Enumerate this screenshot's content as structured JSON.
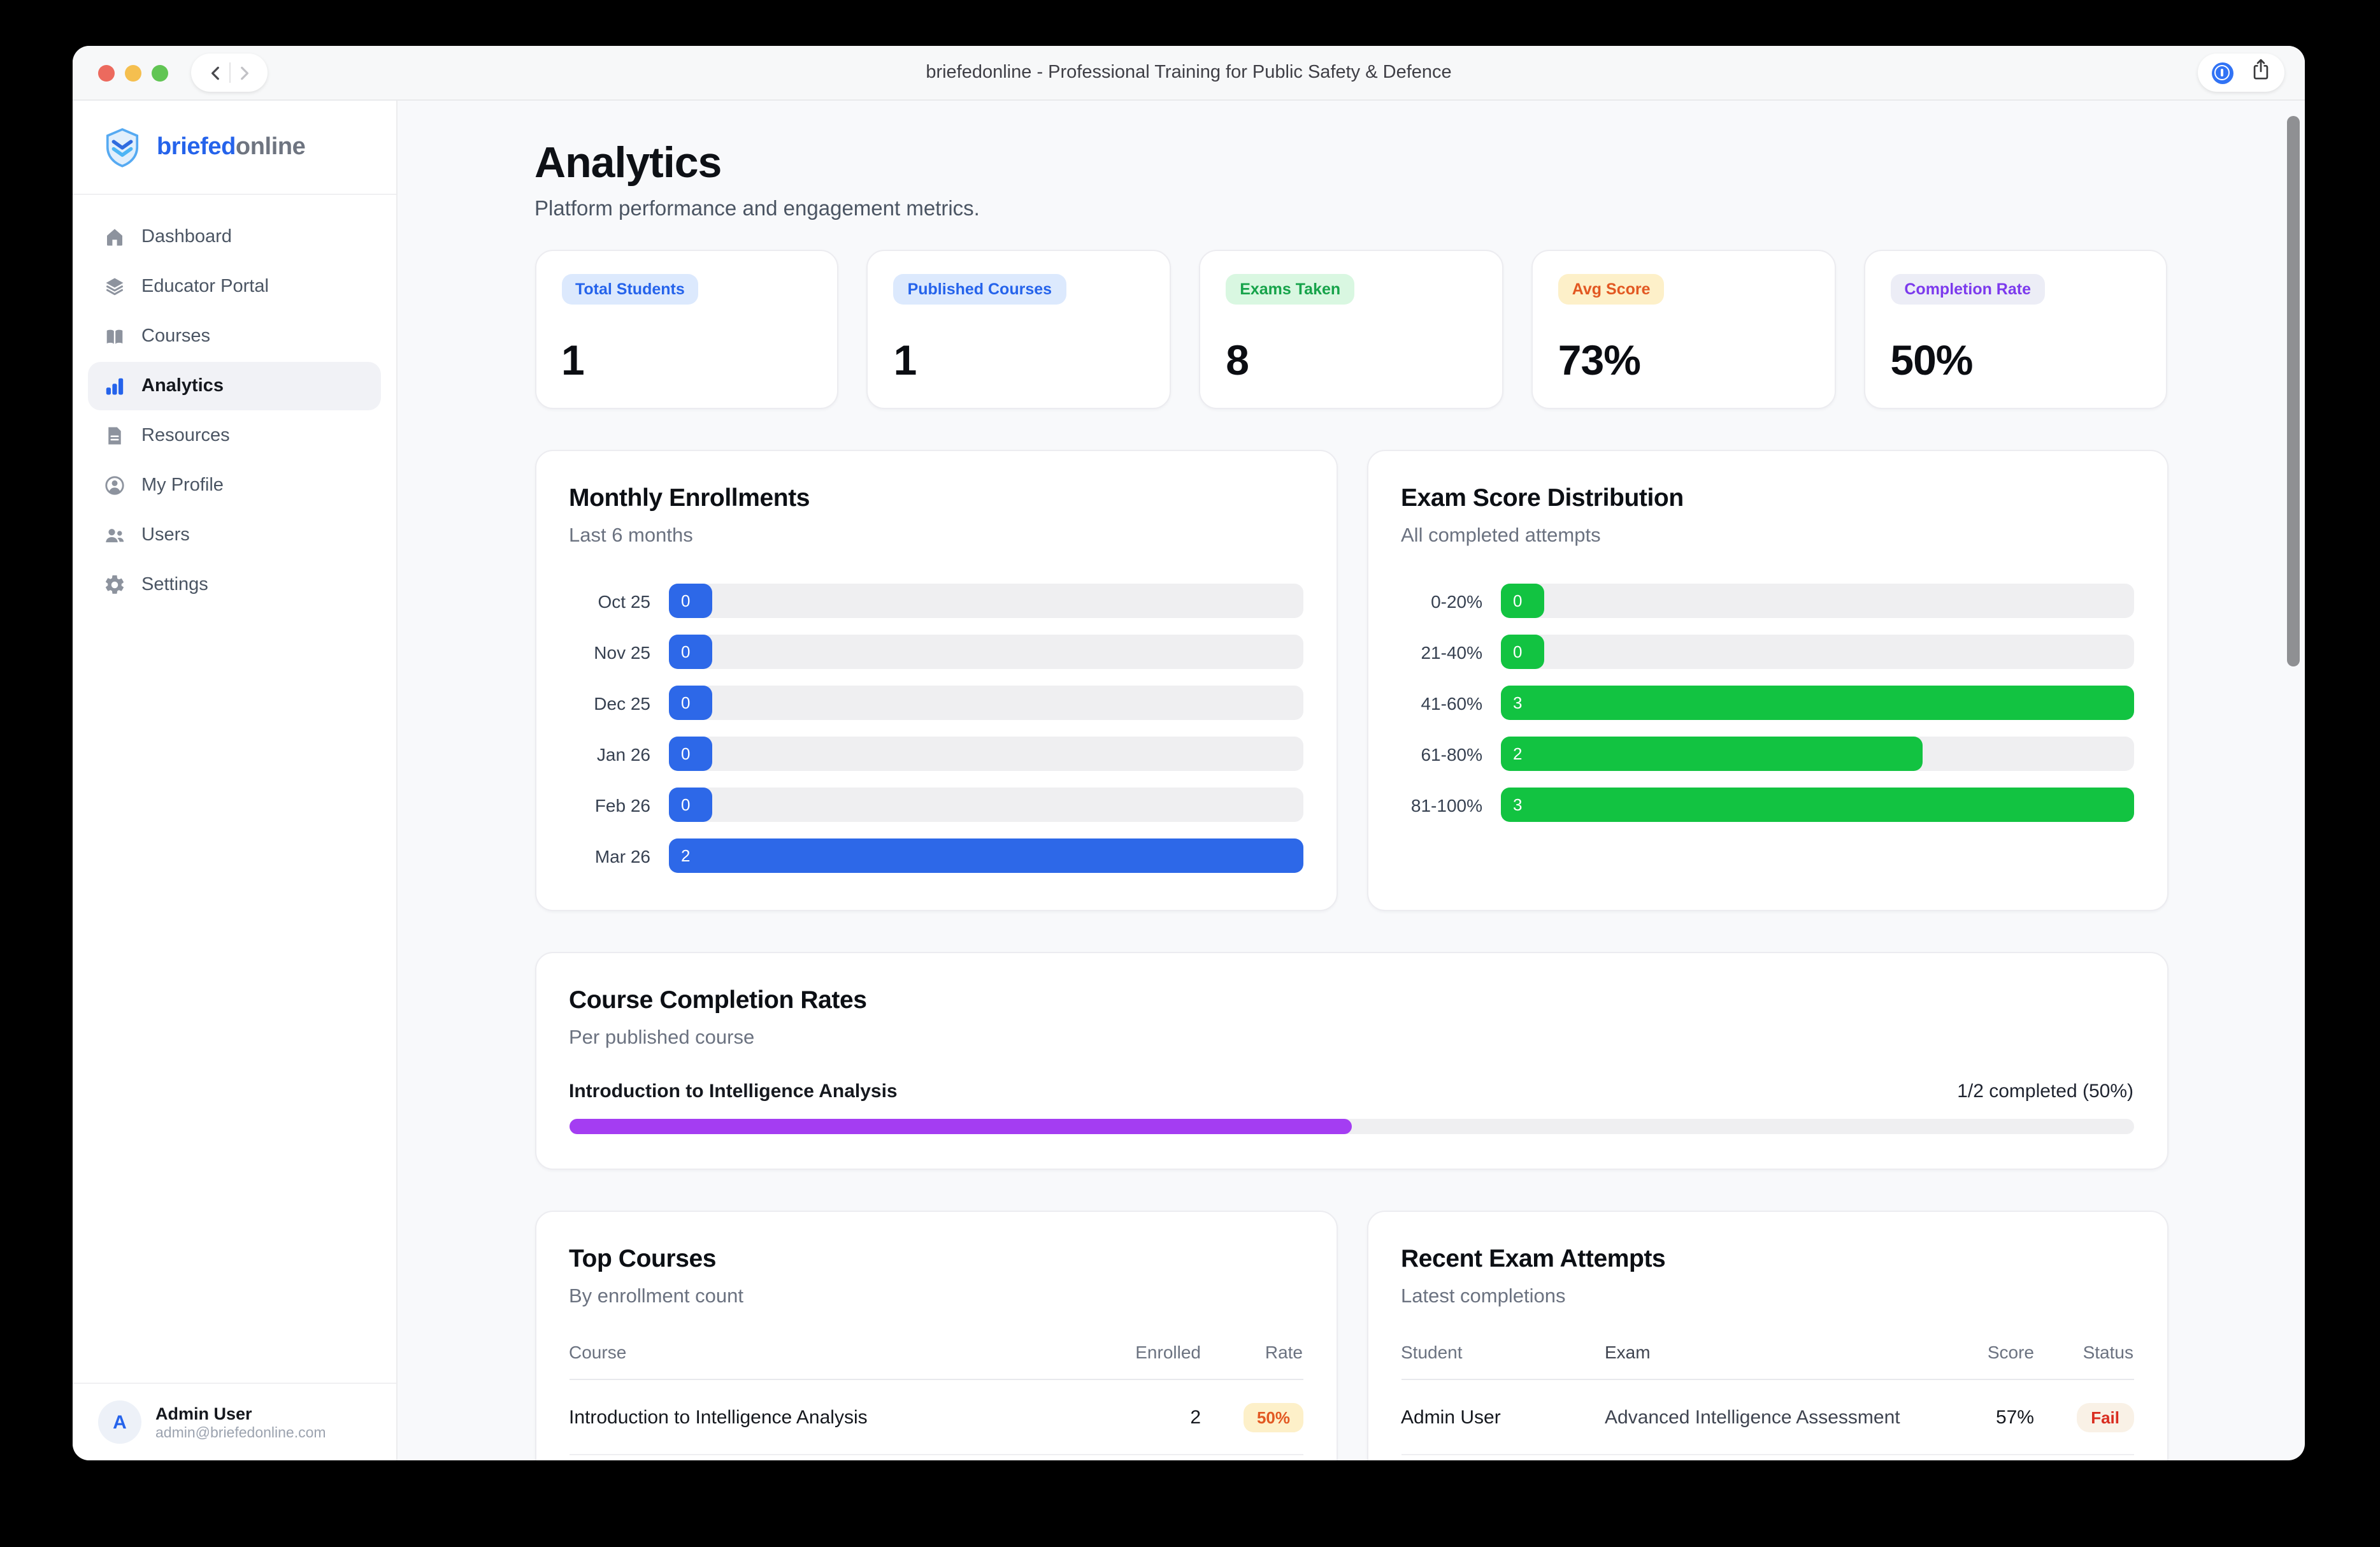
{
  "window": {
    "title": "briefedonline - Professional Training for Public Safety & Defence"
  },
  "brand": {
    "name_bold": "briefed",
    "name_light": "online"
  },
  "sidebar": {
    "items": [
      {
        "label": "Dashboard",
        "icon": "home-icon",
        "active": false
      },
      {
        "label": "Educator Portal",
        "icon": "layers-icon",
        "active": false
      },
      {
        "label": "Courses",
        "icon": "book-icon",
        "active": false
      },
      {
        "label": "Analytics",
        "icon": "bar-chart-icon",
        "active": true
      },
      {
        "label": "Resources",
        "icon": "document-icon",
        "active": false
      },
      {
        "label": "My Profile",
        "icon": "profile-icon",
        "active": false
      },
      {
        "label": "Users",
        "icon": "users-icon",
        "active": false
      },
      {
        "label": "Settings",
        "icon": "gear-icon",
        "active": false
      }
    ],
    "user": {
      "initial": "A",
      "name": "Admin User",
      "email": "admin@briefedonline.com"
    }
  },
  "page": {
    "title": "Analytics",
    "subtitle": "Platform performance and engagement metrics."
  },
  "stats": [
    {
      "label": "Total Students",
      "value": "1",
      "badge_bg": "#dce9fd",
      "badge_text": "#2563eb"
    },
    {
      "label": "Published Courses",
      "value": "1",
      "badge_bg": "#dce9fd",
      "badge_text": "#2563eb"
    },
    {
      "label": "Exams Taken",
      "value": "8",
      "badge_bg": "#d9f7e1",
      "badge_text": "#16a34a"
    },
    {
      "label": "Avg Score",
      "value": "73%",
      "badge_bg": "#fdf0c9",
      "badge_text": "#e25822"
    },
    {
      "label": "Completion Rate",
      "value": "50%",
      "badge_bg": "#ecedf6",
      "badge_text": "#7c3aed"
    }
  ],
  "chart_data": [
    {
      "type": "bar",
      "orientation": "horizontal",
      "title": "Monthly Enrollments",
      "subtitle": "Last 6 months",
      "categories": [
        "Oct 25",
        "Nov 25",
        "Dec 25",
        "Jan 26",
        "Feb 26",
        "Mar 26"
      ],
      "values": [
        0,
        0,
        0,
        0,
        0,
        2
      ],
      "xlim": [
        0,
        2
      ],
      "grid": false,
      "value_labels": "inside-start",
      "bar_color": "#2d68e8",
      "track_color": "#efeff1"
    },
    {
      "type": "bar",
      "orientation": "horizontal",
      "title": "Exam Score Distribution",
      "subtitle": "All completed attempts",
      "categories": [
        "0-20%",
        "21-40%",
        "41-60%",
        "61-80%",
        "81-100%"
      ],
      "values": [
        0,
        0,
        3,
        2,
        3
      ],
      "xlim": [
        0,
        3
      ],
      "grid": false,
      "value_labels": "inside-start",
      "bar_color": "#12c341",
      "track_color": "#efeff1"
    }
  ],
  "completion_card": {
    "title": "Course Completion Rates",
    "subtitle": "Per published course",
    "rows": [
      {
        "course": "Introduction to Intelligence Analysis",
        "summary": "1/2 completed (50%)",
        "percent": 50,
        "bar_color": "#a43df2"
      }
    ]
  },
  "top_courses": {
    "title": "Top Courses",
    "subtitle": "By enrollment count",
    "headers": {
      "course": "Course",
      "enrolled": "Enrolled",
      "rate": "Rate"
    },
    "rows": [
      {
        "course": "Introduction to Intelligence Analysis",
        "enrolled": "2",
        "rate": "50%"
      }
    ]
  },
  "recent_exams": {
    "title": "Recent Exam Attempts",
    "subtitle": "Latest completions",
    "headers": {
      "student": "Student",
      "exam": "Exam",
      "score": "Score",
      "status": "Status"
    },
    "rows": [
      {
        "student": "Admin User",
        "exam": "Advanced Intelligence Assessment",
        "score": "57%",
        "status": "Fail"
      }
    ]
  },
  "colors": {
    "accent_blue": "#2d68e8",
    "green": "#12c341",
    "purple": "#a43df2",
    "fail_red": "#d92d20",
    "rate_orange": "#e25822",
    "window_bg": "#f8f9fb"
  }
}
